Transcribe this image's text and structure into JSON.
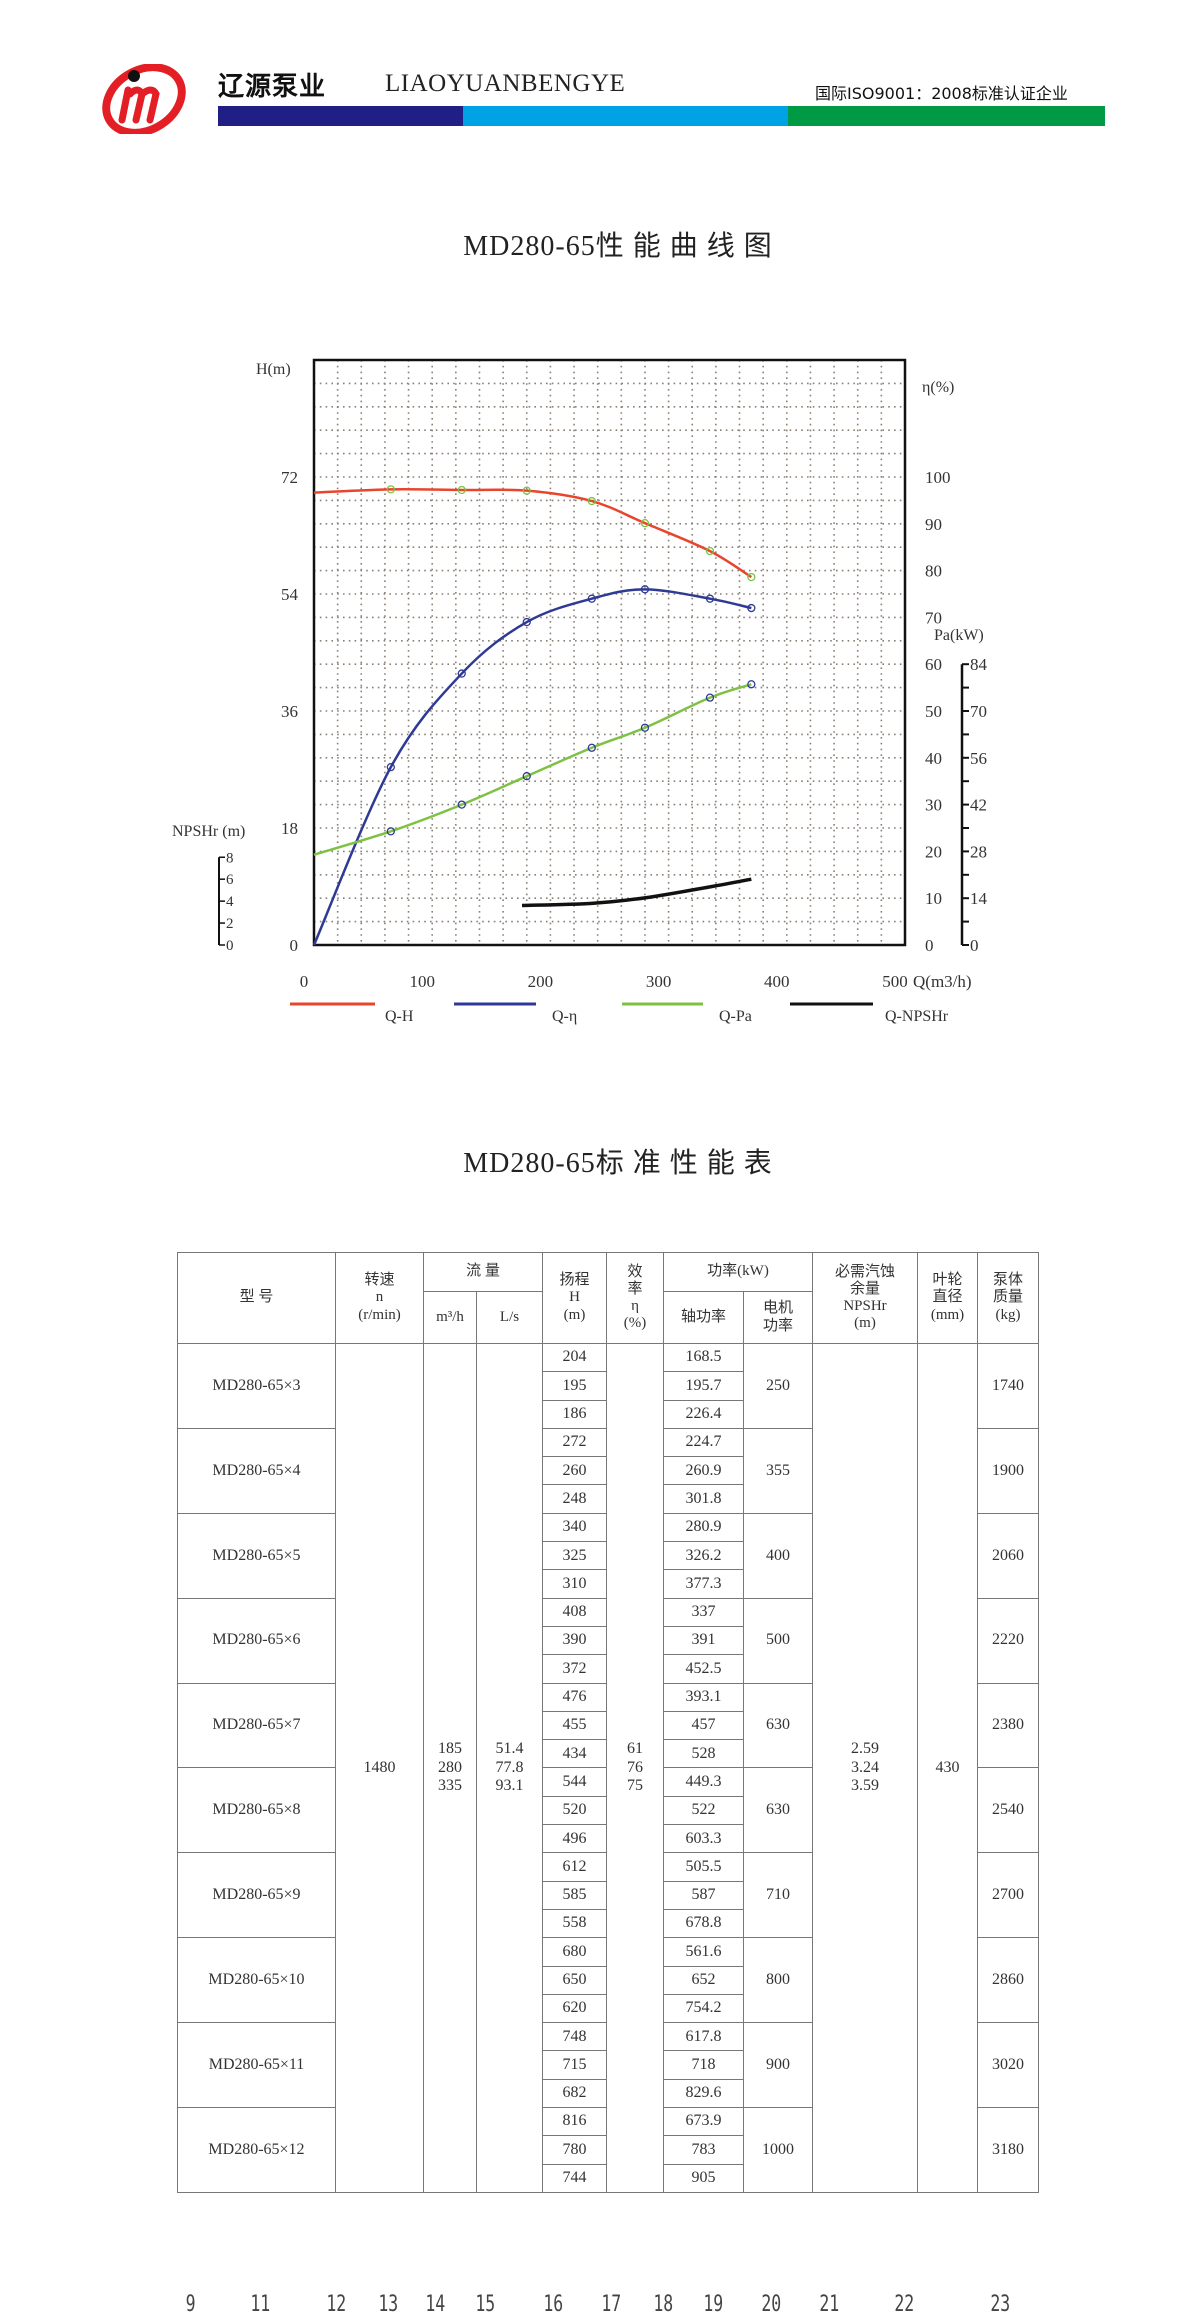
{
  "header": {
    "logo_text": "JM",
    "brand_cn": "辽源泵业",
    "brand_en": "LIAOYUANBENGYE",
    "certification": "国际ISO9001：2008标准认证企业",
    "colors": {
      "logo_red": "#e31e24",
      "bar_blue": "#1f1f85",
      "bar_cyan": "#00a2e6",
      "bar_green": "#009a44"
    }
  },
  "chart_title": "MD280-65性 能 曲 线 图",
  "chart_data": {
    "type": "line",
    "title": "MD280-65性 能 曲 线 图",
    "xlabel": "Q(m3/h)",
    "xlim": [
      0,
      500
    ],
    "xticks": [
      "0",
      "100",
      "200",
      "300",
      "400",
      "500"
    ],
    "grid": true,
    "axes": {
      "H": {
        "label": "H(m)",
        "range": [
          0,
          90
        ],
        "ticks": [
          "0",
          "18",
          "36",
          "54",
          "72"
        ]
      },
      "eta": {
        "label": "η(%)",
        "range": [
          0,
          100
        ],
        "ticks": [
          "0",
          "10",
          "20",
          "30",
          "40",
          "50",
          "60",
          "70",
          "80",
          "90",
          "100"
        ]
      },
      "Pa": {
        "label": "Pa(kW)",
        "range": [
          0,
          84
        ],
        "ticks": [
          "0",
          "14",
          "28",
          "42",
          "56",
          "70",
          "84"
        ]
      },
      "NPSHr": {
        "label": "NPSHr (m)",
        "range": [
          0,
          8
        ],
        "ticks": [
          "0",
          "2",
          "4",
          "6",
          "8"
        ]
      }
    },
    "legend_position": "bottom",
    "series": [
      {
        "name": "Q-H",
        "axis": "H",
        "color": "#e8452c",
        "x": [
          0,
          65,
          125,
          180,
          235,
          280,
          335,
          370
        ],
        "y": [
          69.6,
          70.1,
          70.0,
          69.9,
          68.3,
          64.9,
          60.6,
          56.6
        ],
        "markers_from": 1
      },
      {
        "name": "Q-η",
        "axis": "eta",
        "color": "#2e3a94",
        "x": [
          0,
          65,
          125,
          180,
          235,
          280,
          335,
          370
        ],
        "y": [
          0,
          38,
          58,
          69,
          74,
          76,
          74,
          72
        ],
        "markers_from": 1
      },
      {
        "name": "Q-Pa",
        "axis": "Pa",
        "color": "#7dc242",
        "x": [
          0,
          65,
          125,
          180,
          235,
          280,
          335,
          370
        ],
        "y": [
          27,
          34,
          42,
          50.5,
          59,
          65,
          74,
          78
        ],
        "markers_from": 1
      },
      {
        "name": "Q-NPSHr",
        "axis": "NPSHr",
        "color": "#111111",
        "x": [
          176,
          235,
          280,
          335,
          370
        ],
        "y": [
          3.6,
          3.8,
          4.3,
          5.3,
          6.0
        ],
        "markers_from": 99
      }
    ]
  },
  "table_title": "MD280-65标 准 性 能 表",
  "table": {
    "headers": {
      "model": "型 号",
      "speed": [
        "转速",
        "n",
        "(r/min)"
      ],
      "flow": "流 量",
      "flow_m3h": "m³/h",
      "flow_ls": "L/s",
      "head": [
        "扬程",
        "H",
        "(m)"
      ],
      "efficiency": [
        "效",
        "率",
        "η",
        "(%)"
      ],
      "power": "功率(kW)",
      "shaft_power": "轴功率",
      "motor_power": [
        "电机",
        "功率"
      ],
      "npshr": [
        "必需汽蚀",
        "余量",
        "NPSHr",
        "(m)"
      ],
      "impeller": [
        "叶轮",
        "直径",
        "(mm)"
      ],
      "mass": [
        "泵体",
        "质量",
        "(kg)"
      ]
    },
    "speed": "1480",
    "flow_m3h": [
      "185",
      "280",
      "335"
    ],
    "flow_ls": [
      "51.4",
      "77.8",
      "93.1"
    ],
    "efficiency": [
      "61",
      "76",
      "75"
    ],
    "npshr": [
      "2.59",
      "3.24",
      "3.59"
    ],
    "impeller": "430",
    "groups": [
      {
        "model": "MD280-65×3",
        "head": [
          "204",
          "195",
          "186"
        ],
        "shaft": [
          "168.5",
          "195.7",
          "226.4"
        ],
        "motor": "250",
        "mass": "1740"
      },
      {
        "model": "MD280-65×4",
        "head": [
          "272",
          "260",
          "248"
        ],
        "shaft": [
          "224.7",
          "260.9",
          "301.8"
        ],
        "motor": "355",
        "mass": "1900"
      },
      {
        "model": "MD280-65×5",
        "head": [
          "340",
          "325",
          "310"
        ],
        "shaft": [
          "280.9",
          "326.2",
          "377.3"
        ],
        "motor": "400",
        "mass": "2060"
      },
      {
        "model": "MD280-65×6",
        "head": [
          "408",
          "390",
          "372"
        ],
        "shaft": [
          "337",
          "391",
          "452.5"
        ],
        "motor": "500",
        "mass": "2220"
      },
      {
        "model": "MD280-65×7",
        "head": [
          "476",
          "455",
          "434"
        ],
        "shaft": [
          "393.1",
          "457",
          "528"
        ],
        "motor": "630",
        "mass": "2380"
      },
      {
        "model": "MD280-65×8",
        "head": [
          "544",
          "520",
          "496"
        ],
        "shaft": [
          "449.3",
          "522",
          "603.3"
        ],
        "motor": "630",
        "mass": "2540"
      },
      {
        "model": "MD280-65×9",
        "head": [
          "612",
          "585",
          "558"
        ],
        "shaft": [
          "505.5",
          "587",
          "678.8"
        ],
        "motor": "710",
        "mass": "2700"
      },
      {
        "model": "MD280-65×10",
        "head": [
          "680",
          "650",
          "620"
        ],
        "shaft": [
          "561.6",
          "652",
          "754.2"
        ],
        "motor": "800",
        "mass": "2860"
      },
      {
        "model": "MD280-65×11",
        "head": [
          "748",
          "715",
          "682"
        ],
        "shaft": [
          "617.8",
          "718",
          "829.6"
        ],
        "motor": "900",
        "mass": "3020"
      },
      {
        "model": "MD280-65×12",
        "head": [
          "816",
          "780",
          "744"
        ],
        "shaft": [
          "673.9",
          "783",
          "905"
        ],
        "motor": "1000",
        "mass": "3180"
      }
    ]
  },
  "page_numbers": [
    "9",
    "11",
    "12",
    "13",
    "14",
    "15",
    "16",
    "17",
    "18",
    "19",
    "20",
    "21",
    "22",
    "23"
  ]
}
